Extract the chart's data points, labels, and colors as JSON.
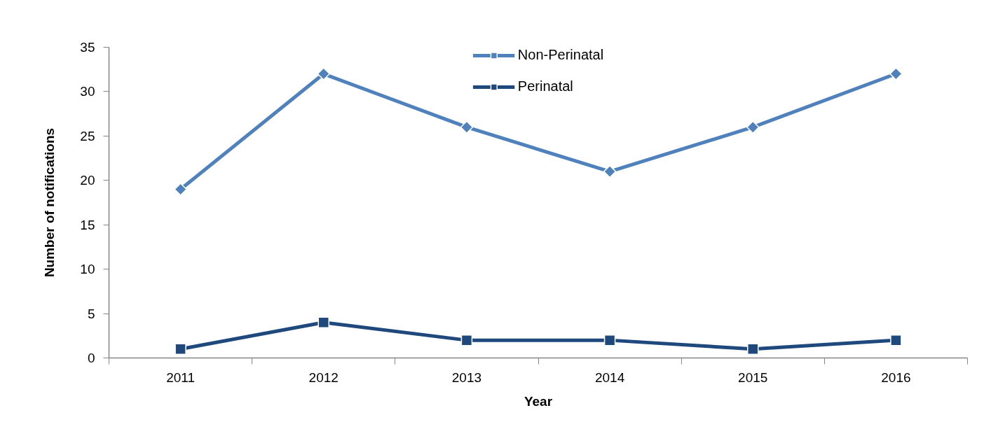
{
  "chart_data": {
    "type": "line",
    "xlabel": "Year",
    "ylabel": "Number of notifications",
    "categories": [
      "2011",
      "2012",
      "2013",
      "2014",
      "2015",
      "2016"
    ],
    "series": [
      {
        "name": "Non-Perinatal",
        "color": "#4f81bd",
        "marker": "diamond",
        "values": [
          19,
          32,
          26,
          21,
          26,
          32
        ]
      },
      {
        "name": "Perinatal",
        "color": "#1f497d",
        "marker": "square",
        "values": [
          1,
          4,
          2,
          2,
          1,
          2
        ]
      }
    ],
    "ylim": [
      0,
      35
    ],
    "yticks": [
      0,
      5,
      10,
      15,
      20,
      25,
      30,
      35
    ],
    "grid": false,
    "legend": "top",
    "line_style": "solid"
  }
}
